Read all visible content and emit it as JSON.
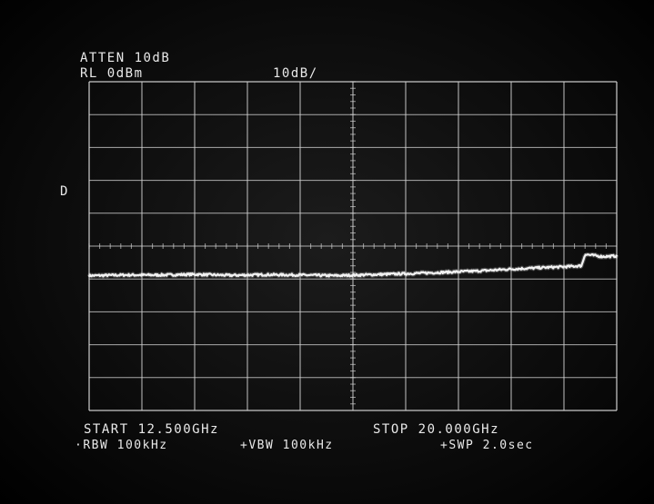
{
  "screen": {
    "atten_text": "ATTEN 10dB",
    "ref_level_text": "RL 0dBm",
    "scale_text": "10dB/",
    "marker_text": "D",
    "start_text": "START 12.500GHz",
    "stop_text": "STOP 20.000GHz",
    "rbw_text": "·RBW 100kHz",
    "vbw_text": "+VBW 100kHz",
    "sweep_text": "+SWP 2.0sec"
  },
  "colors": {
    "trace": "#f2f2f2",
    "graticule": "#d0d0d0",
    "text": "#e9e9e9"
  },
  "chart_data": {
    "type": "line",
    "x_unit": "GHz",
    "y_unit": "dBm",
    "xlim": [
      12.5,
      20.0
    ],
    "ylim": [
      -100,
      0
    ],
    "grid": true,
    "x_divisions": 10,
    "y_divisions": 10,
    "series": [
      {
        "x": [
          12.5,
          13.0,
          13.5,
          14.0,
          14.5,
          15.0,
          15.5,
          16.0,
          16.5,
          17.0,
          17.5,
          18.0,
          18.5,
          19.0,
          19.25,
          19.5,
          19.55,
          19.8,
          20.0
        ],
        "y": [
          -59.0,
          -58.8,
          -58.8,
          -58.6,
          -58.9,
          -58.7,
          -58.8,
          -59.0,
          -58.7,
          -58.4,
          -58.0,
          -57.6,
          -57.0,
          -56.5,
          -56.3,
          -56.0,
          -52.5,
          -53.2,
          -53.0
        ]
      }
    ]
  }
}
